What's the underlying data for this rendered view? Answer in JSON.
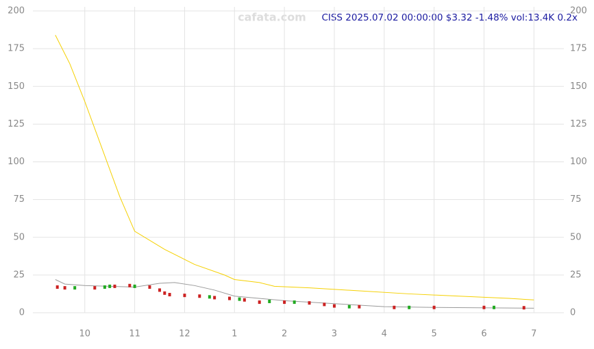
{
  "chart_data": {
    "type": "stock",
    "title": "CISS 2025.07.02 00:00:00 $3.32 -1.48% vol:13.4K 0.2x",
    "watermark": "cafata.com",
    "xlim": [
      8.96,
      19.6
    ],
    "xticks": [
      10,
      11,
      12,
      {
        "value": 13,
        "label": "1"
      },
      {
        "value": 14,
        "label": "2"
      },
      {
        "value": 15,
        "label": "3"
      },
      {
        "value": 16,
        "label": "4"
      },
      {
        "value": 17,
        "label": "5"
      },
      {
        "value": 18,
        "label": "6"
      },
      {
        "value": 19,
        "label": "7"
      }
    ],
    "ylim": [
      0,
      200
    ],
    "yticks": [
      0,
      25,
      50,
      75,
      100,
      125,
      150,
      175,
      200
    ],
    "grid": true,
    "series": [
      {
        "type": "line",
        "color": "#f5d000",
        "x": [
          9.41,
          9.7,
          10,
          10.3,
          10.7,
          11,
          11.6,
          12.2,
          12.8,
          13,
          13.5,
          13.8,
          14.5,
          15.5,
          16.5,
          17.5,
          18.5,
          19
        ],
        "values": [
          184,
          165,
          140,
          113,
          77,
          54,
          42,
          32,
          25,
          22,
          20,
          17.5,
          16.5,
          14.5,
          12.5,
          11,
          9.5,
          8.5
        ]
      },
      {
        "type": "line",
        "color": "#999999",
        "x": [
          9.41,
          9.6,
          10,
          10.5,
          11,
          11.5,
          11.8,
          12.2,
          12.6,
          13,
          14,
          15,
          16,
          17,
          19
        ],
        "values": [
          22,
          19,
          18,
          17.5,
          17,
          19.5,
          20,
          18,
          15,
          11,
          8,
          6,
          4,
          3.5,
          3
        ]
      },
      {
        "type": "candle",
        "color": "#cc2222",
        "x": [
          9.45,
          9.6,
          10.2,
          10.6,
          10.9,
          11.3,
          11.5,
          11.6,
          11.7,
          12,
          12.3,
          12.6,
          12.9,
          13.2,
          13.5,
          14,
          14.5,
          14.8,
          15,
          15.5,
          16.2,
          17,
          18,
          18.8
        ],
        "values": [
          17,
          16.5,
          16.5,
          17.5,
          18,
          17,
          15,
          13,
          12,
          11.5,
          11,
          10,
          9.5,
          8.5,
          7,
          7,
          6.5,
          5.5,
          4.5,
          4,
          3.5,
          3.5,
          3.5,
          3.3
        ]
      },
      {
        "type": "candle",
        "color": "#22aa22",
        "x": [
          9.8,
          10.4,
          10.5,
          11,
          12.5,
          13.1,
          13.7,
          14.2,
          15.3,
          16.5,
          18.2
        ],
        "values": [
          16.5,
          17,
          17.5,
          17.5,
          10.5,
          9,
          7.5,
          7,
          4,
          3.5,
          3.5
        ]
      }
    ]
  }
}
